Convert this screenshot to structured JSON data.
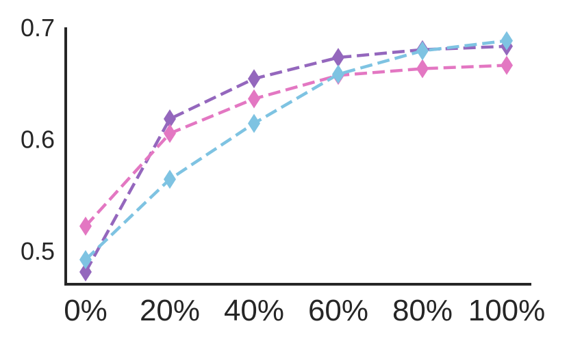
{
  "chart_data": {
    "type": "line",
    "title": "",
    "xlabel": "",
    "ylabel": "",
    "categories": [
      "0%",
      "20%",
      "40%",
      "60%",
      "80%",
      "100%"
    ],
    "ylim": [
      0.47,
      0.7
    ],
    "yticks": [
      0.5,
      0.6,
      0.7
    ],
    "ytick_labels": [
      "0.5",
      "0.6",
      "0.7"
    ],
    "grid": false,
    "marker": "diamond",
    "line_style": "dashed",
    "series": [
      {
        "color": "#9467bd",
        "values": [
          0.481,
          0.618,
          0.654,
          0.673,
          0.68,
          0.683
        ]
      },
      {
        "color": "#e377c2",
        "values": [
          0.522,
          0.605,
          0.636,
          0.657,
          0.663,
          0.666
        ]
      },
      {
        "color": "#7ec3e2",
        "values": [
          0.492,
          0.564,
          0.614,
          0.658,
          0.679,
          0.688
        ]
      }
    ]
  }
}
